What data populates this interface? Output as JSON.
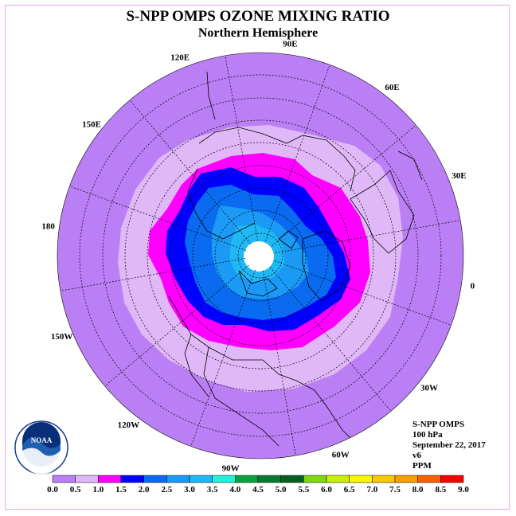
{
  "title": "S-NPP OMPS OZONE MIXING RATIO",
  "subtitle": "Northern Hemisphere",
  "longitude_labels": [
    "90E",
    "60E",
    "30E",
    "0",
    "30W",
    "60W",
    "90W",
    "120W",
    "150W",
    "180",
    "150E",
    "120E"
  ],
  "info": {
    "instrument": "S-NPP OMPS",
    "level": "100 hPa",
    "date": "September 22, 2017",
    "version": "v6",
    "units": "PPM"
  },
  "logo": {
    "text": "NOAA",
    "ring_text": "NATIONAL OCEANIC AND ATMOSPHERIC ADMINISTRATION · U.S. DEPARTMENT OF COMMERCE"
  },
  "colorbar": {
    "ticks": [
      "0.0",
      "0.5",
      "1.0",
      "1.5",
      "2.0",
      "2.5",
      "3.0",
      "3.5",
      "4.0",
      "4.5",
      "5.0",
      "5.5",
      "6.0",
      "6.5",
      "7.0",
      "7.5",
      "8.0",
      "8.5",
      "9.0"
    ],
    "colors": [
      "#bb7ff5",
      "#e0b8f7",
      "#ff00ff",
      "#0000ff",
      "#0a6bf0",
      "#1a9af5",
      "#1fb8f5",
      "#27f0d8",
      "#0aa040",
      "#087a34",
      "#056020",
      "#80d810",
      "#c8f000",
      "#f8f800",
      "#f8c800",
      "#f8a000",
      "#f86000",
      "#f80000",
      "#805030"
    ]
  },
  "field": {
    "outer_level": "0.0-0.5",
    "levels": [
      "0.5-1.0",
      "1.0-1.5",
      "1.5-2.0",
      "2.0-2.5",
      "2.5-3.0",
      "3.0-3.5"
    ],
    "pole_missing": true
  }
}
